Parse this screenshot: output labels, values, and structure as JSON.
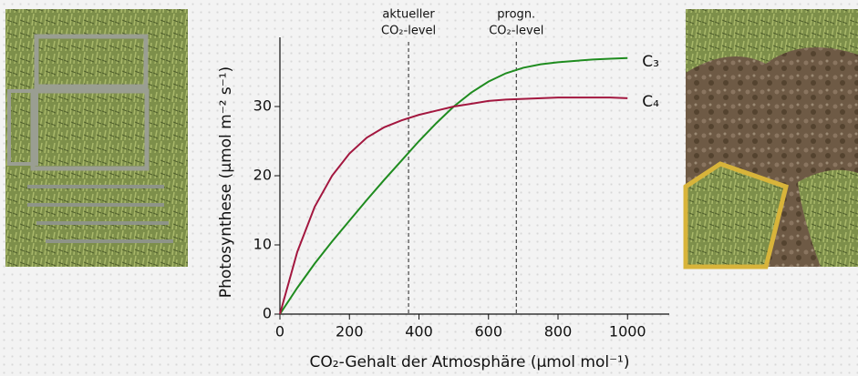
{
  "chart_data": {
    "type": "line",
    "x_label": "CO₂-Gehalt der Atmosphäre (µmol mol⁻¹)",
    "y_label": "Photosynthese (µmol m⁻² s⁻¹)",
    "x": [
      0,
      50,
      100,
      150,
      200,
      250,
      300,
      350,
      400,
      450,
      500,
      550,
      600,
      650,
      700,
      750,
      800,
      850,
      900,
      950,
      1000
    ],
    "series": [
      {
        "name": "C₃",
        "color": "#1f8c1f",
        "values": [
          0,
          3.8,
          7.3,
          10.5,
          13.5,
          16.5,
          19.4,
          22.2,
          25,
          27.6,
          30,
          32,
          33.6,
          34.8,
          35.6,
          36.1,
          36.4,
          36.6,
          36.8,
          36.9,
          37
        ]
      },
      {
        "name": "C₄",
        "color": "#a3173f",
        "values": [
          0,
          9,
          15.5,
          20,
          23.2,
          25.5,
          27,
          28,
          28.8,
          29.4,
          30,
          30.4,
          30.8,
          31,
          31.1,
          31.2,
          31.3,
          31.3,
          31.3,
          31.3,
          31.2
        ]
      }
    ],
    "annotations": [
      {
        "x": 370,
        "label_lines": [
          "aktueller",
          "CO₂-level"
        ]
      },
      {
        "x": 680,
        "label_lines": [
          "progn.",
          "CO₂-level"
        ]
      }
    ],
    "xlim": [
      0,
      1120
    ],
    "ylim": [
      0,
      40
    ],
    "xticks": [
      0,
      200,
      400,
      600,
      800,
      1000
    ],
    "yticks": [
      0,
      10,
      20,
      30
    ]
  }
}
